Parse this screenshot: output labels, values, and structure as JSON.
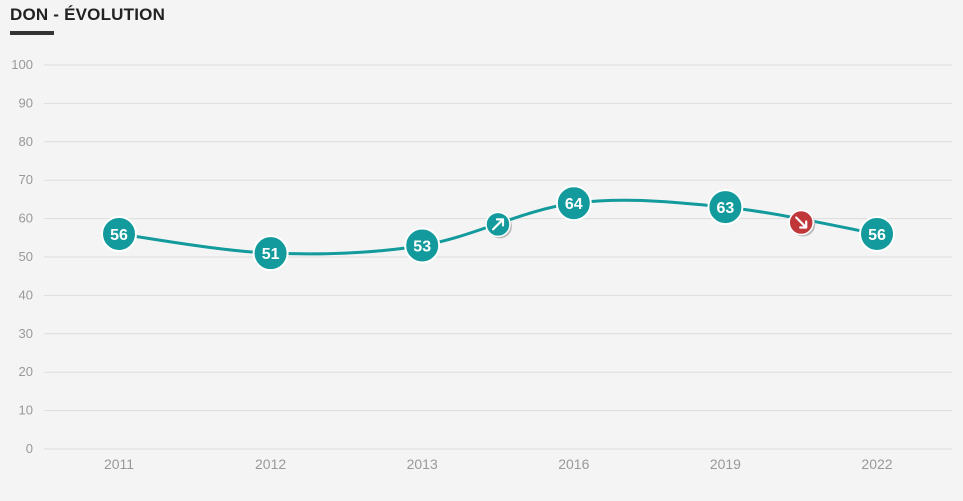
{
  "title": "DON - ÉVOLUTION",
  "colors": {
    "line": "#139a9c",
    "up": "#139a9c",
    "down": "#c0373a",
    "grid": "#dcdcdc"
  },
  "chart_data": {
    "type": "line",
    "categories": [
      "2011",
      "2012",
      "2013",
      "2016",
      "2019",
      "2022"
    ],
    "values": [
      56,
      51,
      53,
      64,
      63,
      56
    ],
    "ylim": [
      0,
      100
    ],
    "yticks": [
      0,
      10,
      20,
      30,
      40,
      50,
      60,
      70,
      80,
      90,
      100
    ],
    "grid": true,
    "markers": [
      {
        "between": [
          2,
          3
        ],
        "direction": "up",
        "icon": "arrow-up-right-icon"
      },
      {
        "between": [
          4,
          5
        ],
        "direction": "down",
        "icon": "arrow-down-right-icon"
      }
    ]
  }
}
